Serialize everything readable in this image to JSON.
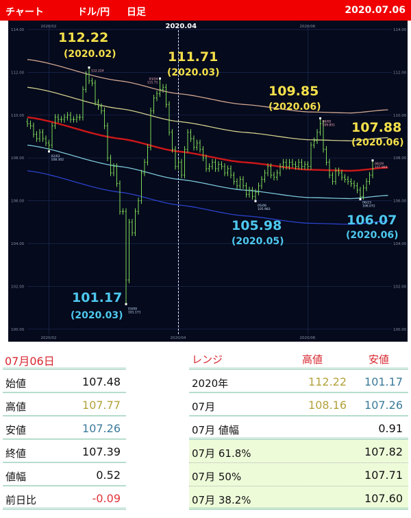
{
  "header": {
    "title": "チャート",
    "pair": "ドル/円",
    "period": "日足",
    "date": "2020.07.06"
  },
  "chart_data": {
    "type": "candlestick",
    "ylim": [
      100,
      114
    ],
    "y_ticks": [
      "114.00",
      "112.00",
      "110.00",
      "108.00",
      "106.00",
      "104.00",
      "102.00",
      "100.00"
    ],
    "x_ticks": [
      {
        "label": "2020/02",
        "index": 7
      },
      {
        "label": "2020/04",
        "index": 49
      },
      {
        "label": "2020/06",
        "index": 91
      }
    ],
    "marker_label": "2020.04",
    "closes": [
      109.6,
      109.5,
      109.1,
      108.9,
      109.2,
      108.9,
      108.7,
      108.6,
      109.5,
      109.9,
      109.8,
      109.8,
      109.9,
      110.0,
      109.8,
      109.8,
      109.9,
      109.9,
      111.2,
      111.9,
      111.6,
      111.5,
      110.6,
      110.4,
      110.2,
      109.5,
      108.0,
      107.3,
      107.6,
      106.8,
      105.5,
      105.5,
      102.3,
      105.0,
      104.5,
      105.5,
      106.0,
      107.3,
      107.8,
      108.5,
      110.2,
      110.8,
      111.0,
      111.2,
      111.3,
      110.5,
      109.2,
      108.4,
      107.6,
      107.8,
      107.2,
      108.4,
      109.2,
      108.9,
      108.5,
      108.7,
      108.4,
      108.0,
      107.5,
      107.6,
      107.8,
      107.5,
      107.7,
      107.6,
      107.3,
      107.5,
      107.2,
      106.9,
      106.7,
      107.0,
      106.7,
      106.3,
      106.5,
      106.2,
      106.4,
      106.7,
      107.0,
      107.3,
      107.6,
      107.2,
      107.1,
      107.3,
      107.6,
      107.8,
      107.6,
      107.8,
      107.7,
      107.6,
      107.8,
      107.6,
      107.7,
      107.6,
      108.6,
      108.8,
      109.2,
      109.6,
      108.4,
      107.8,
      107.2,
      106.9,
      107.4,
      107.3,
      107.1,
      107.0,
      106.9,
      106.8,
      106.7,
      106.5,
      106.2,
      106.6,
      106.9,
      107.2,
      107.5
    ],
    "extremes": [
      {
        "index": 7,
        "price": 108.302,
        "label": "02/03",
        "value": "108.302",
        "kind": "low"
      },
      {
        "index": 20,
        "price": 112.224,
        "label": "",
        "value": "112.224",
        "kind": "high"
      },
      {
        "index": 32,
        "price": 101.171,
        "label": "03/09",
        "value": "101.171",
        "kind": "low"
      },
      {
        "index": 43,
        "price": 111.71,
        "label": "03/24",
        "value": "111.71",
        "kind": "high"
      },
      {
        "index": 74,
        "price": 105.983,
        "label": "05/06",
        "value": "105.983",
        "kind": "low"
      },
      {
        "index": 95,
        "price": 109.851,
        "label": "06/05",
        "value": "109.851",
        "kind": "high"
      },
      {
        "index": 108,
        "price": 106.072,
        "label": "06/23",
        "value": "106.072",
        "kind": "low"
      },
      {
        "index": 112,
        "price": 107.884,
        "label": "06/29",
        "value": "107.884",
        "kind": "high"
      }
    ],
    "channel": {
      "center": [
        [
          0,
          109.9
        ],
        [
          30,
          108.9
        ],
        [
          49,
          108.3
        ],
        [
          70,
          107.8
        ],
        [
          91,
          107.45
        ],
        [
          105,
          107.4
        ],
        [
          117,
          107.55
        ]
      ],
      "offsets": [
        2.7,
        1.4,
        0,
        -1.3,
        -2.5
      ],
      "colors": [
        "#e8b8a0",
        "#e8e49a",
        "#e01818",
        "#8adcf0",
        "#3048e0"
      ]
    },
    "candle_color": "#7fd957",
    "annotations": [
      {
        "value": "112.22",
        "date": "(2020.02)",
        "color": "#f5e04a"
      },
      {
        "value": "111.71",
        "date": "(2020.03)",
        "color": "#f5e04a"
      },
      {
        "value": "109.85",
        "date": "(2020.06)",
        "color": "#f5e04a"
      },
      {
        "value": "107.88",
        "date": "(2020.06)",
        "color": "#f5e04a"
      },
      {
        "value": "101.17",
        "date": "(2020.03)",
        "color": "#4ec8ef"
      },
      {
        "value": "105.98",
        "date": "(2020.05)",
        "color": "#4ec8ef"
      },
      {
        "value": "106.07",
        "date": "(2020.06)",
        "color": "#4ec8ef"
      }
    ]
  },
  "daily": {
    "title": "07月06日",
    "rows": [
      {
        "label": "始値",
        "value": "107.48",
        "color": "#111111"
      },
      {
        "label": "高値",
        "value": "107.77",
        "color": "#b3a23a"
      },
      {
        "label": "安値",
        "value": "107.26",
        "color": "#3a7a9a"
      },
      {
        "label": "終値",
        "value": "107.39",
        "color": "#111111"
      },
      {
        "label": "値幅",
        "value": "0.52",
        "color": "#111111"
      },
      {
        "label": "前日比",
        "value": "-0.09",
        "color": "#e0323a"
      }
    ]
  },
  "range": {
    "title": "レンジ",
    "high_header": "高値",
    "low_header": "安値",
    "rows": [
      {
        "label": "2020年",
        "high": "112.22",
        "low": "101.17"
      },
      {
        "label": "07月",
        "high": "108.16",
        "low": "107.26"
      }
    ],
    "width": {
      "label": "07月 値幅",
      "value": "0.91"
    },
    "fib": [
      {
        "label": "07月  61.8%",
        "value": "107.82"
      },
      {
        "label": "07月  50%",
        "value": "107.71"
      },
      {
        "label": "07月  38.2%",
        "value": "107.60"
      }
    ]
  }
}
